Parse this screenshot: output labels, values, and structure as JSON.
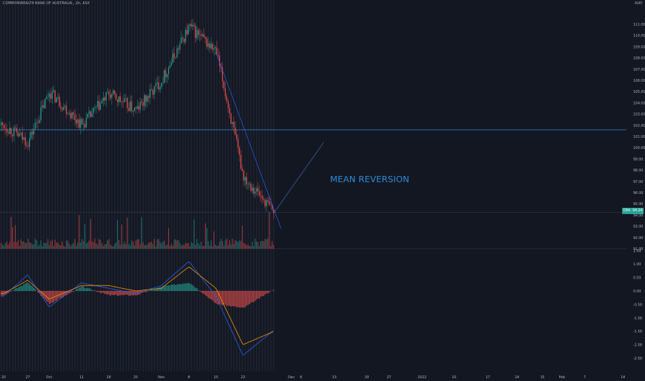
{
  "header": {
    "title": "COMMONWEALTH BANK OF AUSTRALIA., 2h, ASX",
    "currency": "AUD"
  },
  "price_badge": {
    "symbol": "CBA",
    "value": "94.24"
  },
  "annotation": {
    "text": "MEAN REVERSION"
  },
  "colors": {
    "background": "#131722",
    "up": "#26a69a",
    "down": "#ef5350",
    "trendline": "#2962ff",
    "resistance": "#2e8cd6",
    "macd_line": "#2962ff",
    "signal_line": "#ff9800",
    "grid": "#1e222d",
    "text": "#b2b5be"
  },
  "chart_data": [
    {
      "type": "candlestick",
      "title": "",
      "price_axis": {
        "ylim": [
          91,
          112.3
        ],
        "ticks": [
          "111.00",
          "110.00",
          "109.00",
          "108.00",
          "107.00",
          "106.00",
          "105.00",
          "104.00",
          "103.00",
          "102.00",
          "101.00",
          "100.00",
          "99.00",
          "98.00",
          "97.00",
          "96.00",
          "95.00",
          "94.00",
          "93.00",
          "92.00",
          "91.00"
        ]
      },
      "time_axis": {
        "ticks": [
          "20",
          "27",
          "Oct",
          "11",
          "18",
          "25",
          "Nov",
          "8",
          "15",
          "22",
          "Dec",
          "6",
          "13",
          "20",
          "27",
          "2022",
          "10",
          "17",
          "24",
          "31",
          "Feb",
          "7",
          "14"
        ]
      },
      "close_path": {
        "x": [
          "20",
          "27",
          "Oct",
          "11",
          "18",
          "25",
          "Nov",
          "8",
          "15",
          "22",
          "29"
        ],
        "y": [
          102.0,
          100.5,
          105.0,
          102.0,
          104.8,
          103.3,
          106.0,
          110.8,
          108.5,
          97.5,
          94.2
        ]
      },
      "resistance_level": 101.6,
      "last_price": 94.24,
      "projection": {
        "from": {
          "x": "29",
          "y": 94.2
        },
        "to": {
          "x": "13",
          "y": 100.5
        }
      },
      "trendline": {
        "from": {
          "x": "Nov 15",
          "y": 108.5
        },
        "to": {
          "x": "29",
          "y": 92.8
        }
      }
    },
    {
      "type": "histogram",
      "title": "",
      "ylim": [
        -2.6,
        1.6
      ],
      "ticks": [
        "1.50",
        "1.00",
        "0.50",
        "0.00",
        "-0.50",
        "-1.00",
        "-1.50",
        "-2.00",
        "-2.50"
      ],
      "macd_path": {
        "x": [
          "20",
          "27",
          "Oct",
          "11",
          "18",
          "25",
          "Nov",
          "8",
          "15",
          "22",
          "29"
        ],
        "y": [
          -0.2,
          0.6,
          -0.6,
          0.3,
          0.1,
          -0.1,
          0.2,
          1.1,
          -0.2,
          -2.4,
          -1.45
        ]
      },
      "signal_path": {
        "x": [
          "20",
          "27",
          "Oct",
          "11",
          "18",
          "25",
          "Nov",
          "8",
          "15",
          "22",
          "29"
        ],
        "y": [
          -0.1,
          0.4,
          -0.3,
          0.2,
          0.2,
          0.0,
          0.1,
          0.9,
          0.1,
          -2.0,
          -1.5
        ]
      }
    }
  ]
}
